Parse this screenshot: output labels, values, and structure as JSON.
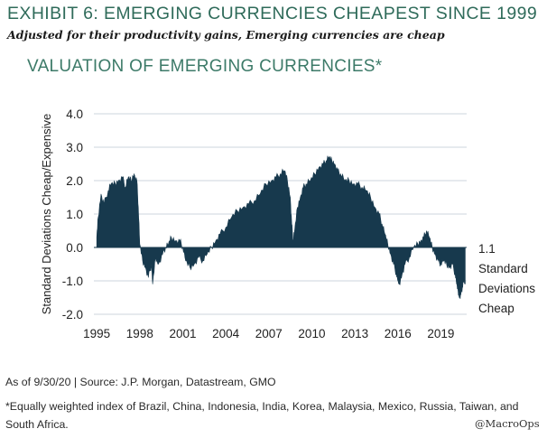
{
  "header": {
    "exhibit_title": "EXHIBIT 6: EMERGING CURRENCIES CHEAPEST SINCE 1999",
    "subtitle": "Adjusted for their productivity gains, Emerging currencies are cheap"
  },
  "chart_data": {
    "type": "area",
    "title": "VALUATION OF EMERGING CURRENCIES*",
    "xlabel": "",
    "ylabel": "Standard Deviations Cheap/Expensive",
    "ylim": [
      -2.0,
      4.0
    ],
    "xlim": [
      1994.8,
      2020.8
    ],
    "yticks": [
      4.0,
      3.0,
      2.0,
      1.0,
      0.0,
      -1.0,
      -2.0
    ],
    "ytick_labels": [
      "4.0",
      "3.0",
      "2.0",
      "1.0",
      "0.0",
      "-1.0",
      "-2.0"
    ],
    "xticks": [
      1995,
      1998,
      2001,
      2004,
      2007,
      2010,
      2013,
      2016,
      2019
    ],
    "xtick_labels": [
      "1995",
      "1998",
      "2001",
      "2004",
      "2007",
      "2010",
      "2013",
      "2016",
      "2019"
    ],
    "grid": true,
    "color": "#17394d",
    "series": [
      {
        "name": "Valuation of Emerging Currencies",
        "x": [
          1995.0,
          1995.1,
          1995.3,
          1995.5,
          1995.8,
          1996.0,
          1996.3,
          1996.5,
          1996.8,
          1997.0,
          1997.2,
          1997.4,
          1997.6,
          1997.8,
          1997.9,
          1998.0,
          1998.2,
          1998.4,
          1998.6,
          1998.8,
          1998.9,
          1999.1,
          1999.3,
          1999.6,
          1999.8,
          2000.0,
          2000.2,
          2000.5,
          2000.8,
          2001.0,
          2001.2,
          2001.5,
          2001.8,
          2002.1,
          2002.4,
          2002.7,
          2003.0,
          2003.3,
          2003.6,
          2004.0,
          2004.4,
          2004.8,
          2005.2,
          2005.6,
          2006.0,
          2006.4,
          2006.8,
          2007.2,
          2007.5,
          2007.8,
          2008.1,
          2008.3,
          2008.5,
          2008.6,
          2008.7,
          2008.8,
          2009.0,
          2009.2,
          2009.4,
          2009.6,
          2009.9,
          2010.2,
          2010.5,
          2010.8,
          2011.0,
          2011.2,
          2011.4,
          2011.6,
          2011.8,
          2012.0,
          2012.3,
          2012.6,
          2012.9,
          2013.2,
          2013.5,
          2013.8,
          2014.1,
          2014.4,
          2014.7,
          2014.9,
          2015.1,
          2015.3,
          2015.5,
          2015.7,
          2015.9,
          2016.0,
          2016.1,
          2016.3,
          2016.5,
          2016.8,
          2017.1,
          2017.4,
          2017.6,
          2017.8,
          2018.0,
          2018.2,
          2018.4,
          2018.6,
          2018.8,
          2019.0,
          2019.2,
          2019.4,
          2019.6,
          2019.8,
          2020.0,
          2020.1,
          2020.2,
          2020.3,
          2020.4,
          2020.5,
          2020.6,
          2020.7
        ],
        "values": [
          0.3,
          0.9,
          1.6,
          1.3,
          1.7,
          1.9,
          1.9,
          2.0,
          2.1,
          1.8,
          2.1,
          2.0,
          2.2,
          2.0,
          1.2,
          0.1,
          -0.4,
          -0.6,
          -0.9,
          -0.5,
          -1.1,
          -0.3,
          -0.5,
          -0.2,
          0.0,
          0.1,
          0.3,
          0.2,
          0.2,
          0.0,
          -0.4,
          -0.6,
          -0.5,
          -0.3,
          -0.4,
          -0.2,
          0.0,
          0.2,
          0.4,
          0.6,
          0.9,
          1.1,
          1.2,
          1.3,
          1.4,
          1.6,
          1.9,
          2.0,
          2.1,
          2.2,
          2.3,
          2.0,
          1.5,
          0.7,
          0.2,
          0.5,
          1.2,
          1.5,
          1.8,
          1.9,
          2.0,
          2.2,
          2.4,
          2.5,
          2.6,
          2.7,
          2.6,
          2.5,
          2.3,
          2.2,
          2.0,
          2.0,
          1.9,
          1.9,
          1.8,
          1.7,
          1.5,
          1.2,
          1.0,
          0.7,
          0.4,
          0.1,
          -0.2,
          -0.5,
          -0.8,
          -1.0,
          -1.1,
          -0.8,
          -0.5,
          -0.3,
          0.0,
          0.1,
          0.2,
          0.3,
          0.5,
          0.3,
          0.0,
          -0.2,
          -0.4,
          -0.5,
          -0.4,
          -0.5,
          -0.6,
          -0.5,
          -0.8,
          -1.1,
          -1.3,
          -1.5,
          -1.4,
          -1.2,
          -1.0,
          -1.1
        ]
      }
    ],
    "annotations": [
      "1.1",
      "Standard",
      "Deviations",
      "Cheap"
    ]
  },
  "footer": {
    "source": "As of 9/30/20 | Source: J.P. Morgan, Datastream, GMO",
    "note": "*Equally weighted index of Brazil, China, Indonesia, India, Korea, Malaysia, Mexico, Russia, Taiwan, and South Africa.",
    "watermark": "@MacroOps"
  }
}
